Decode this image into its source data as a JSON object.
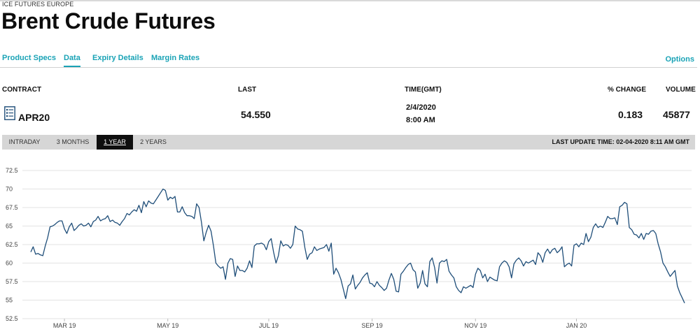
{
  "header": {
    "exchange": "ICE FUTURES EUROPE",
    "title": "Brent Crude Futures"
  },
  "tabs": [
    {
      "label": "Product Specs",
      "active": false
    },
    {
      "label": "Data",
      "active": true
    },
    {
      "label": "Expiry Details",
      "active": false
    },
    {
      "label": "Margin Rates",
      "active": false
    }
  ],
  "options_label": "Options",
  "table": {
    "headers": {
      "contract": "CONTRACT",
      "last": "LAST",
      "time": "TIME(GMT)",
      "change": "% CHANGE",
      "volume": "VOLUME"
    },
    "row": {
      "contract": "APR20",
      "last": "54.550",
      "date": "2/4/2020",
      "time": "8:00 AM",
      "change": "0.183",
      "volume": "45877"
    }
  },
  "ranges": [
    {
      "label": "INTRADAY",
      "active": false
    },
    {
      "label": "3 MONTHS",
      "active": false
    },
    {
      "label": "1 YEAR",
      "active": true
    },
    {
      "label": "2 YEARS",
      "active": false
    }
  ],
  "last_update": "LAST UPDATE TIME: 02-04-2020 8:11 AM GMT",
  "colors": {
    "accent": "#1aa3b6",
    "line": "#1f4e79",
    "grid": "#e3e3e3"
  },
  "chart_data": {
    "type": "line",
    "title": "",
    "xlabel": "",
    "ylabel": "",
    "ylim": [
      52.5,
      72.5
    ],
    "yticks": [
      52.5,
      55,
      57.5,
      60,
      62.5,
      65,
      67.5,
      70,
      72.5
    ],
    "xticks": [
      {
        "label": "MAR 19",
        "index": 14
      },
      {
        "label": "MAY 19",
        "index": 57
      },
      {
        "label": "JUL 19",
        "index": 99
      },
      {
        "label": "SEP 19",
        "index": 142
      },
      {
        "label": "NOV 19",
        "index": 185
      },
      {
        "label": "JAN 20",
        "index": 227
      }
    ],
    "series": [
      {
        "values": [
          61.5,
          62.2,
          61.2,
          61.3,
          61.1,
          61.0,
          62.3,
          63.4,
          64.9,
          65.0,
          65.2,
          65.5,
          65.7,
          65.7,
          64.6,
          64.0,
          64.9,
          65.4,
          64.4,
          64.7,
          65.1,
          65.3,
          65.0,
          65.1,
          65.4,
          64.9,
          65.6,
          65.8,
          66.3,
          65.7,
          65.9,
          66.0,
          66.4,
          65.6,
          65.8,
          65.5,
          65.4,
          65.1,
          65.6,
          66.0,
          66.7,
          66.5,
          66.9,
          67.2,
          67.0,
          67.8,
          66.8,
          68.3,
          67.6,
          68.4,
          68.1,
          68.0,
          68.5,
          69.0,
          69.5,
          70.0,
          69.8,
          68.5,
          68.9,
          68.7,
          69.0,
          66.9,
          66.9,
          67.6,
          66.8,
          66.4,
          66.4,
          66.3,
          66.0,
          68.0,
          67.5,
          65.5,
          63.0,
          64.2,
          65.1,
          64.3,
          62.3,
          60.0,
          59.6,
          59.3,
          59.5,
          57.8,
          60.0,
          60.6,
          60.5,
          58.2,
          59.6,
          59.0,
          59.0,
          58.8,
          59.3,
          60.3,
          59.4,
          62.3,
          62.6,
          62.6,
          62.7,
          62.5,
          61.8,
          62.9,
          63.3,
          61.5,
          60.0,
          61.0,
          63.0,
          62.3,
          62.5,
          62.4,
          62.0,
          62.5,
          65.0,
          64.6,
          64.5,
          64.3,
          62.1,
          60.5,
          61.2,
          61.4,
          62.2,
          61.7,
          61.9,
          62.0,
          62.1,
          62.5,
          61.6,
          62.7,
          58.5,
          59.3,
          58.7,
          57.8,
          56.5,
          55.2,
          56.9,
          57.2,
          58.4,
          56.5,
          57.0,
          57.4,
          58.0,
          58.4,
          58.7,
          57.3,
          57.2,
          56.8,
          57.5,
          57.0,
          56.7,
          56.3,
          56.6,
          57.7,
          58.6,
          57.8,
          56.2,
          56.1,
          58.5,
          58.9,
          59.4,
          59.8,
          60.0,
          59.1,
          58.8,
          56.6,
          57.3,
          59.0,
          57.2,
          56.8,
          60.2,
          60.7,
          59.4,
          57.3,
          60.0,
          60.3,
          60.2,
          60.5,
          58.9,
          58.4,
          58.0,
          56.8,
          56.3,
          56.0,
          56.8,
          56.6,
          56.8,
          57.0,
          56.7,
          58.5,
          59.3,
          59.0,
          58.0,
          58.5,
          57.5,
          58.1,
          57.9,
          57.7,
          57.6,
          59.5,
          60.0,
          60.3,
          60.1,
          59.5,
          58.0,
          59.9,
          60.4,
          60.7,
          60.3,
          59.6,
          60.2,
          60.0,
          60.2,
          60.4,
          59.8,
          61.4,
          61.0,
          60.1,
          61.4,
          61.9,
          61.3,
          61.8,
          62.0,
          61.4,
          61.7,
          62.2,
          59.5,
          59.8,
          60.0,
          59.6,
          62.4,
          62.6,
          62.2,
          62.7,
          62.5,
          64.0,
          62.9,
          63.5,
          64.8,
          65.3,
          64.8,
          65.0,
          64.8,
          65.5,
          66.3,
          66.0,
          66.0,
          66.1,
          65.2,
          67.6,
          67.8,
          68.2,
          68.0,
          64.8,
          64.5,
          63.9,
          63.8,
          63.4,
          64.0,
          63.2,
          64.0,
          63.9,
          64.3,
          64.4,
          64.0,
          62.6,
          61.5,
          60.0,
          59.5,
          58.8,
          58.2,
          58.6,
          59.0,
          56.9,
          56.0,
          55.3,
          54.6
        ]
      }
    ]
  }
}
